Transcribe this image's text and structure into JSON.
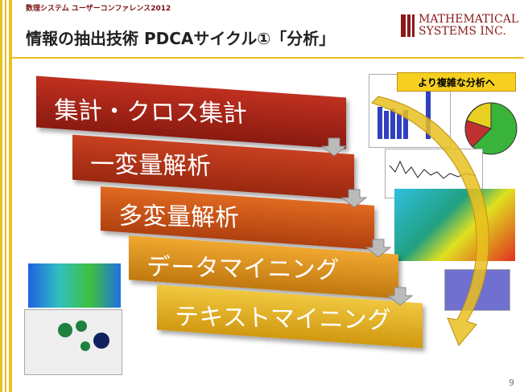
{
  "header": {
    "conference": "数理システム ユーザーコンファレンス2012",
    "title": "情報の抽出技術 PDCAサイクル①「分析」",
    "logo": [
      "MATHEMATICAL",
      "SYSTEMS INC."
    ]
  },
  "steps": [
    "集計・クロス集計",
    "一変量解析",
    "多変量解析",
    "データマイニング",
    "テキストマイニング"
  ],
  "callout": "より複雑な分析へ",
  "page_number": "9"
}
